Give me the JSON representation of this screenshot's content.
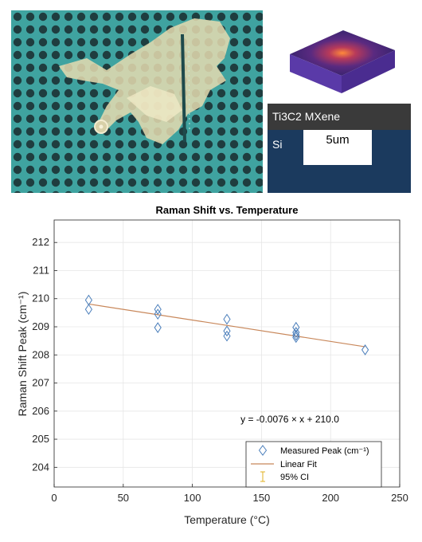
{
  "figure": {
    "schematic": {
      "film_label": "Ti3C2 MXene",
      "substrate_label": "Si",
      "scale_label": "5um",
      "colors": {
        "film": "#3a3a3a",
        "substrate": "#1b3a5e",
        "block_top": "#4a2a7a",
        "block_side": "#5a3aa8"
      }
    },
    "micrograph": {
      "colors": {
        "background": "#3fa3a0",
        "holes": "#1f3d3f",
        "flake": "#e6dcb0"
      }
    }
  },
  "chart_data": {
    "type": "scatter",
    "title": "Raman Shift vs. Temperature",
    "xlabel": "Temperature (°C)",
    "ylabel": "Raman Shift Peak (cm⁻¹)",
    "xlim": [
      0,
      250
    ],
    "ylim": [
      203.3,
      212.8
    ],
    "xticks": [
      0,
      50,
      100,
      150,
      200,
      250
    ],
    "yticks": [
      204,
      205,
      206,
      207,
      208,
      209,
      210,
      211,
      212
    ],
    "grid": true,
    "series": [
      {
        "name": "Measured Peak (cm⁻¹)",
        "marker": "diamond",
        "color": "#4a7ebb",
        "points": [
          {
            "x": 25,
            "y": 209.95
          },
          {
            "x": 25,
            "y": 209.62
          },
          {
            "x": 75,
            "y": 209.62
          },
          {
            "x": 75,
            "y": 209.45
          },
          {
            "x": 75,
            "y": 208.97
          },
          {
            "x": 125,
            "y": 209.27
          },
          {
            "x": 125,
            "y": 208.85
          },
          {
            "x": 125,
            "y": 208.67
          },
          {
            "x": 175,
            "y": 208.98
          },
          {
            "x": 175,
            "y": 208.8
          },
          {
            "x": 175,
            "y": 208.7
          },
          {
            "x": 175,
            "y": 208.62
          },
          {
            "x": 225,
            "y": 208.18
          }
        ]
      },
      {
        "name": "Linear Fit",
        "type": "line",
        "color": "#c8875a",
        "slope": -0.0076,
        "intercept": 210.0,
        "x_range": [
          25,
          225
        ]
      },
      {
        "name": "95% CI",
        "type": "errorbar",
        "color": "#e0b020"
      }
    ],
    "annotation": "y = -0.0076 × x + 210.0",
    "legend_position": "bottom-right"
  }
}
